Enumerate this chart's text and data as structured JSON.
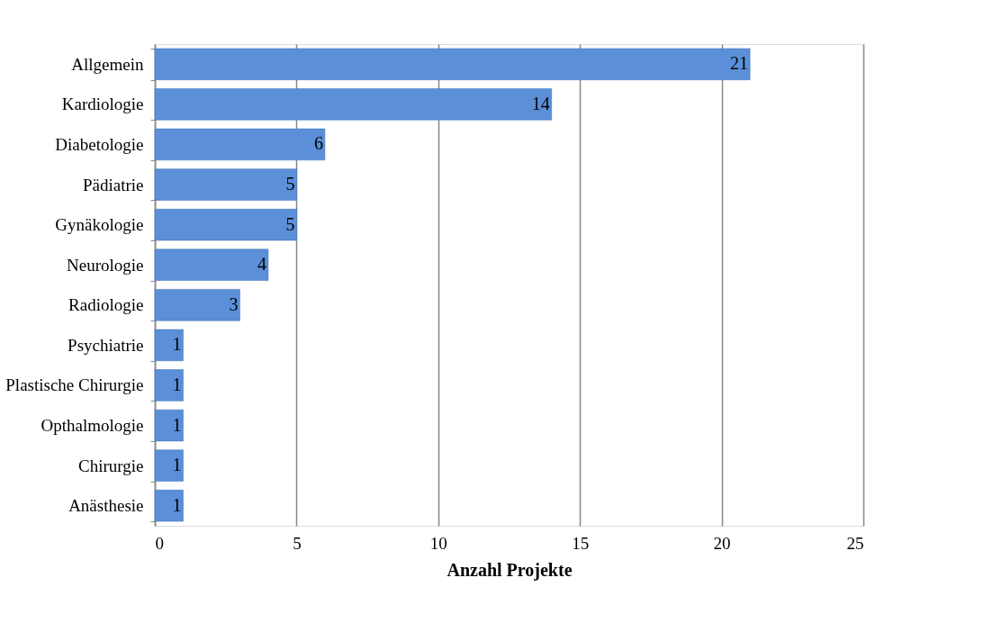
{
  "chart_data": {
    "type": "bar",
    "orientation": "horizontal",
    "xlabel": "Anzahl Projekte",
    "categories": [
      "Allgemein",
      "Kardiologie",
      "Diabetologie",
      "Pädiatrie",
      "Gynäkologie",
      "Neurologie",
      "Radiologie",
      "Psychiatrie",
      "Plastische Chirurgie",
      "Opthalmologie",
      "Chirurgie",
      "Anästhesie"
    ],
    "values": [
      21,
      14,
      6,
      5,
      5,
      4,
      3,
      1,
      1,
      1,
      1,
      1
    ],
    "color": "#5b8fd8",
    "xlim": [
      0,
      25
    ],
    "xticks": [
      0,
      5,
      10,
      15,
      20,
      25
    ],
    "grid": "x",
    "data_labels": true
  }
}
